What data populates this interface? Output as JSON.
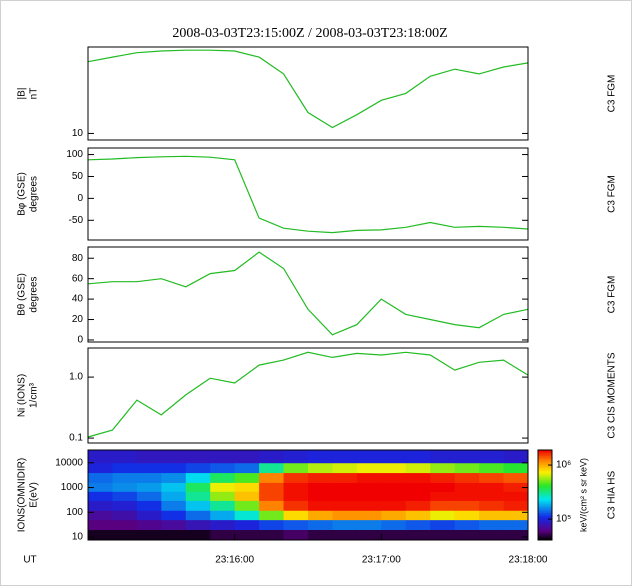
{
  "chart_data": [
    {
      "type": "line",
      "title": "2008-03-03T23:15:00Z / 2008-03-03T23:18:00Z",
      "ylabel": [
        "|B|",
        "nT"
      ],
      "instrument": "C3 FGM",
      "color": "#22bb22",
      "log": true,
      "xlim": [
        "23:15:00",
        "23:18:00"
      ],
      "ylim": [
        9,
        40
      ],
      "yticks": [
        10
      ],
      "x": [
        "23:15:00",
        "23:15:10",
        "23:15:20",
        "23:15:30",
        "23:15:40",
        "23:15:50",
        "23:16:00",
        "23:16:10",
        "23:16:20",
        "23:16:30",
        "23:16:40",
        "23:16:50",
        "23:17:00",
        "23:17:10",
        "23:17:20",
        "23:17:30",
        "23:17:40",
        "23:17:50",
        "23:18:00"
      ],
      "values": [
        31.6,
        34,
        36.5,
        37.5,
        38,
        38,
        37.5,
        34,
        26,
        14,
        11,
        13.5,
        17,
        19,
        25,
        28,
        26,
        29,
        31
      ]
    },
    {
      "type": "line",
      "ylabel": [
        "Bφ (GSE)",
        "degrees"
      ],
      "instrument": "C3 FGM",
      "color": "#22bb22",
      "xlim": [
        "23:15:00",
        "23:18:00"
      ],
      "ylim": [
        -95,
        115
      ],
      "yticks": [
        100,
        50,
        0,
        -50
      ],
      "x": [
        "23:15:00",
        "23:15:10",
        "23:15:20",
        "23:15:30",
        "23:15:40",
        "23:15:50",
        "23:16:00",
        "23:16:10",
        "23:16:20",
        "23:16:30",
        "23:16:40",
        "23:16:50",
        "23:17:00",
        "23:17:10",
        "23:17:20",
        "23:17:30",
        "23:17:40",
        "23:17:50",
        "23:18:00"
      ],
      "values": [
        88,
        90,
        93,
        95,
        96,
        94,
        88,
        -45,
        -68,
        -75,
        -78,
        -73,
        -72,
        -66,
        -55,
        -66,
        -64,
        -66,
        -70
      ]
    },
    {
      "type": "line",
      "ylabel": [
        "Bθ (GSE)",
        "degrees"
      ],
      "instrument": "C3 FGM",
      "color": "#22bb22",
      "xlim": [
        "23:15:00",
        "23:18:00"
      ],
      "ylim": [
        -2,
        91
      ],
      "yticks": [
        80,
        60,
        40,
        20,
        0
      ],
      "x": [
        "23:15:00",
        "23:15:10",
        "23:15:20",
        "23:15:30",
        "23:15:40",
        "23:15:50",
        "23:16:00",
        "23:16:10",
        "23:16:20",
        "23:16:30",
        "23:16:40",
        "23:16:50",
        "23:17:00",
        "23:17:10",
        "23:17:20",
        "23:17:30",
        "23:17:40",
        "23:17:50",
        "23:18:00"
      ],
      "values": [
        55,
        57,
        57,
        60,
        52,
        65,
        68,
        86,
        70,
        30,
        5,
        15,
        40,
        25,
        20,
        15,
        12,
        25,
        30
      ]
    },
    {
      "type": "line",
      "ylabel": [
        "Ni (IONS)",
        "1/cm³"
      ],
      "instrument": "C3 CIS MOMENTS",
      "color": "#22bb22",
      "log": true,
      "xlim": [
        "23:15:00",
        "23:18:00"
      ],
      "ylim": [
        0.083,
        3
      ],
      "yticks": [
        {
          "value": 1,
          "label": "1.0"
        },
        0.1
      ],
      "x": [
        "23:15:00",
        "23:15:10",
        "23:15:20",
        "23:15:30",
        "23:15:40",
        "23:15:50",
        "23:16:00",
        "23:16:10",
        "23:16:20",
        "23:16:30",
        "23:16:40",
        "23:16:50",
        "23:17:00",
        "23:17:10",
        "23:17:20",
        "23:17:30",
        "23:17:40",
        "23:17:50",
        "23:18:00"
      ],
      "values": [
        0.104,
        0.135,
        0.42,
        0.24,
        0.51,
        0.96,
        0.8,
        1.57,
        1.9,
        2.55,
        2.1,
        2.45,
        2.3,
        2.55,
        2.3,
        1.3,
        1.75,
        1.9,
        1.08
      ]
    },
    {
      "type": "heatmap",
      "ylabel": [
        "IONS(OMNIDIR)",
        "E(eV)"
      ],
      "instrument": "C3 HIA HS",
      "log": true,
      "xlabel": "UT",
      "xlim": [
        "23:15:00",
        "23:18:00"
      ],
      "xticks": [
        "23:16:00",
        "23:17:00",
        "23:18:00"
      ],
      "ylim": [
        7.6,
        33000
      ],
      "yticks": [
        10000,
        1000,
        100,
        10
      ],
      "clabel": "keV/(cm² s sr keV)",
      "clim": [
        41000,
        1900000
      ],
      "clog": true,
      "cticks": [
        {
          "value": 1000000,
          "label": "10⁶"
        },
        {
          "value": 100000,
          "label": "10⁵"
        }
      ],
      "xbins": [
        "23:15:00",
        "23:15:10",
        "23:15:20",
        "23:15:30",
        "23:15:40",
        "23:15:50",
        "23:16:00",
        "23:16:10",
        "23:16:20",
        "23:16:30",
        "23:16:40",
        "23:16:50",
        "23:17:00",
        "23:17:10",
        "23:17:20",
        "23:17:30",
        "23:17:40",
        "23:17:50",
        "23:18:00"
      ],
      "ybins": [
        7.6,
        20,
        50,
        120,
        300,
        700,
        1600,
        4000,
        10000,
        33000
      ],
      "z": [
        [
          45000,
          60000,
          70000,
          90000,
          110000,
          150000,
          140000,
          100000,
          90000
        ],
        [
          45000,
          60000,
          75000,
          95000,
          120000,
          160000,
          150000,
          110000,
          90000
        ],
        [
          45000,
          65000,
          90000,
          110000,
          140000,
          170000,
          150000,
          110000,
          85000
        ],
        [
          45000,
          70000,
          110000,
          150000,
          180000,
          200000,
          160000,
          110000,
          85000
        ],
        [
          45000,
          80000,
          140000,
          200000,
          300000,
          350000,
          220000,
          120000,
          85000
        ],
        [
          50000,
          90000,
          180000,
          300000,
          550000,
          700000,
          350000,
          130000,
          85000
        ],
        [
          50000,
          100000,
          250000,
          500000,
          900000,
          800000,
          450000,
          140000,
          85000
        ],
        [
          50000,
          120000,
          500000,
          1200000,
          1500000,
          1500000,
          1200000,
          300000,
          90000
        ],
        [
          55000,
          130000,
          800000,
          1600000,
          1800000,
          1800000,
          1600000,
          500000,
          95000
        ],
        [
          50000,
          140000,
          1000000,
          1800000,
          1900000,
          1900000,
          1700000,
          600000,
          100000
        ],
        [
          50000,
          150000,
          1100000,
          1800000,
          1900000,
          1900000,
          1700000,
          650000,
          100000
        ],
        [
          50000,
          150000,
          1100000,
          1800000,
          1900000,
          1900000,
          1800000,
          700000,
          100000
        ],
        [
          50000,
          140000,
          1000000,
          1800000,
          1900000,
          1900000,
          1800000,
          700000,
          100000
        ],
        [
          50000,
          130000,
          900000,
          1700000,
          1900000,
          1900000,
          1800000,
          650000,
          100000
        ],
        [
          50000,
          120000,
          700000,
          1500000,
          1800000,
          1900000,
          1700000,
          550000,
          95000
        ],
        [
          50000,
          130000,
          800000,
          1500000,
          1800000,
          1800000,
          1600000,
          500000,
          95000
        ],
        [
          50000,
          140000,
          900000,
          1600000,
          1800000,
          1800000,
          1500000,
          450000,
          95000
        ],
        [
          50000,
          140000,
          900000,
          1700000,
          1800000,
          1700000,
          1400000,
          400000,
          90000
        ]
      ]
    }
  ]
}
